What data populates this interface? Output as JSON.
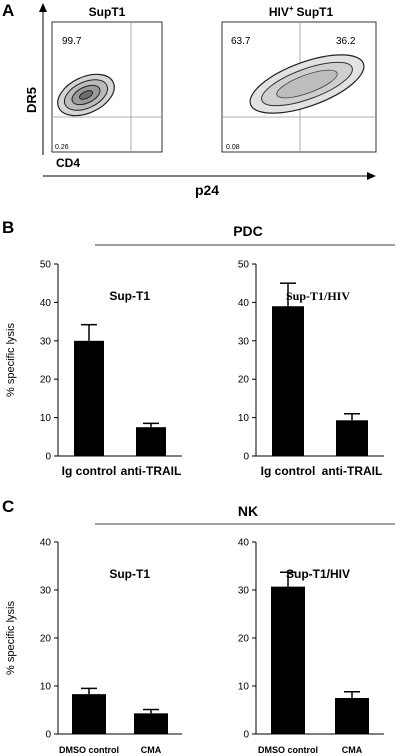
{
  "panel_labels": {
    "a": "A",
    "b": "B",
    "c": "C"
  },
  "panel_a": {
    "y_axis_label": "DR5",
    "x_axis_label_inner": "CD4",
    "x_axis_label_outer": "p24",
    "plots": [
      {
        "title": "SupT1",
        "title_sup": "",
        "quadrant_values": {
          "upper_left": "99.7",
          "upper_right": "",
          "lower_left": "0.26"
        }
      },
      {
        "title": "SupT1",
        "title_prefix": "HIV",
        "title_sup": "+",
        "quadrant_values": {
          "upper_left": "63.7",
          "upper_right": "36.2",
          "lower_left": "0.08"
        }
      }
    ]
  },
  "panel_b": {
    "group_label": "PDC"
  },
  "panel_c": {
    "group_label": "NK"
  },
  "chart_data": [
    {
      "type": "bar",
      "panel": "B",
      "title": "Sup-T1",
      "categories": [
        "Ig control",
        "anti-TRAIL"
      ],
      "values": [
        30,
        7.5
      ],
      "errors": [
        4.2,
        1.0
      ],
      "ylabel": "% specific lysis",
      "ylim": [
        0,
        50
      ],
      "yticks": [
        0,
        10,
        20,
        30,
        40,
        50
      ]
    },
    {
      "type": "bar",
      "panel": "B",
      "title": "Sup-T1/HIV",
      "categories": [
        "Ig control",
        "anti-TRAIL"
      ],
      "values": [
        39,
        9.3
      ],
      "errors": [
        6.0,
        1.7
      ],
      "ylabel": "",
      "ylim": [
        0,
        50
      ],
      "yticks": [
        0,
        10,
        20,
        30,
        40,
        50
      ]
    },
    {
      "type": "bar",
      "panel": "C",
      "title": "Sup-T1",
      "categories": [
        "DMSO control",
        "CMA"
      ],
      "values": [
        8.3,
        4.3
      ],
      "errors": [
        1.2,
        0.8
      ],
      "ylabel": "% specific lysis",
      "ylim": [
        0,
        40
      ],
      "yticks": [
        0,
        10,
        20,
        30,
        40
      ]
    },
    {
      "type": "bar",
      "panel": "C",
      "title": "Sup-T1/HIV",
      "categories": [
        "DMSO control",
        "CMA"
      ],
      "values": [
        30.7,
        7.5
      ],
      "errors": [
        3.0,
        1.3
      ],
      "ylabel": "",
      "ylim": [
        0,
        40
      ],
      "yticks": [
        0,
        10,
        20,
        30,
        40
      ]
    }
  ]
}
